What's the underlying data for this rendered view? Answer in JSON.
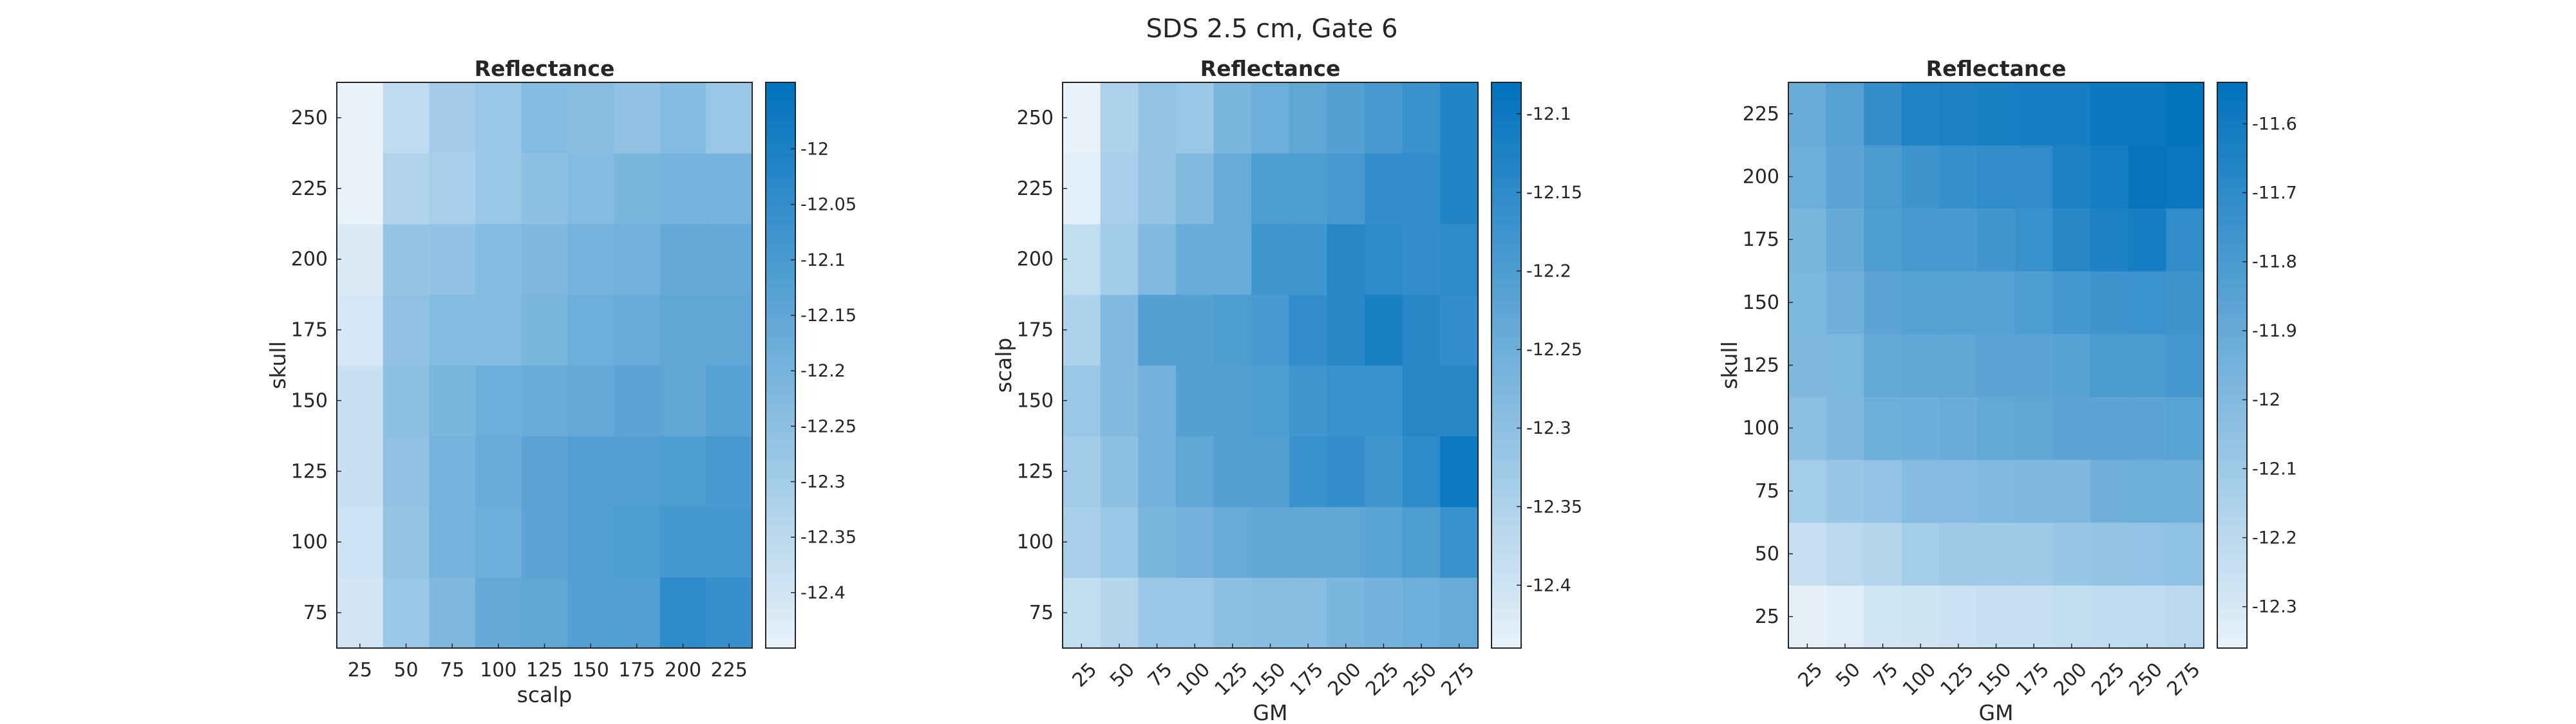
{
  "figure": {
    "title": "SDS 2.5 cm, Gate 6"
  },
  "colormap": {
    "low": "#e8f2fa",
    "high": "#0072bd",
    "frame": "#262626"
  },
  "chart_data": [
    {
      "type": "heatmap",
      "title": "Reflectance",
      "xlabel": "scalp",
      "ylabel": "skull",
      "x": [
        25,
        50,
        75,
        100,
        125,
        150,
        175,
        200,
        225
      ],
      "y": [
        75,
        100,
        125,
        150,
        175,
        200,
        225,
        250
      ],
      "x_tick_rotation": 0,
      "values": [
        [
          -12.4,
          -12.28,
          -12.22,
          -12.16,
          -12.15,
          -12.12,
          -12.12,
          -12.04,
          -12.06
        ],
        [
          -12.39,
          -12.27,
          -12.2,
          -12.18,
          -12.14,
          -12.12,
          -12.11,
          -12.09,
          -12.09
        ],
        [
          -12.38,
          -12.26,
          -12.2,
          -12.17,
          -12.14,
          -12.12,
          -12.12,
          -12.11,
          -12.1
        ],
        [
          -12.38,
          -12.25,
          -12.21,
          -12.18,
          -12.17,
          -12.16,
          -12.14,
          -12.15,
          -12.13
        ],
        [
          -12.41,
          -12.26,
          -12.23,
          -12.23,
          -12.21,
          -12.18,
          -12.17,
          -12.15,
          -12.15
        ],
        [
          -12.42,
          -12.27,
          -12.26,
          -12.23,
          -12.22,
          -12.2,
          -12.19,
          -12.16,
          -12.16
        ],
        [
          -12.45,
          -12.33,
          -12.31,
          -12.28,
          -12.25,
          -12.23,
          -12.21,
          -12.2,
          -12.2
        ],
        [
          -12.45,
          -12.36,
          -12.3,
          -12.28,
          -12.23,
          -12.24,
          -12.26,
          -12.23,
          -12.28
        ]
      ],
      "colorbar": {
        "min": -12.45,
        "max": -11.94,
        "ticks": [
          -12.4,
          -12.35,
          -12.3,
          -12.25,
          -12.2,
          -12.15,
          -12.1,
          -12.05,
          -12
        ]
      }
    },
    {
      "type": "heatmap",
      "title": "Reflectance",
      "xlabel": "GM",
      "ylabel": "scalp",
      "x": [
        25,
        50,
        75,
        100,
        125,
        150,
        175,
        200,
        225,
        250,
        275
      ],
      "y": [
        75,
        100,
        125,
        150,
        175,
        200,
        225,
        250
      ],
      "x_tick_rotation": -45,
      "values": [
        [
          -12.38,
          -12.36,
          -12.32,
          -12.32,
          -12.3,
          -12.29,
          -12.29,
          -12.27,
          -12.26,
          -12.25,
          -12.24
        ],
        [
          -12.34,
          -12.32,
          -12.27,
          -12.26,
          -12.24,
          -12.23,
          -12.23,
          -12.23,
          -12.22,
          -12.2,
          -12.17
        ],
        [
          -12.33,
          -12.3,
          -12.26,
          -12.23,
          -12.21,
          -12.21,
          -12.17,
          -12.16,
          -12.18,
          -12.15,
          -12.1
        ],
        [
          -12.32,
          -12.28,
          -12.26,
          -12.21,
          -12.21,
          -12.2,
          -12.18,
          -12.17,
          -12.17,
          -12.14,
          -12.14
        ],
        [
          -12.35,
          -12.28,
          -12.21,
          -12.21,
          -12.2,
          -12.19,
          -12.16,
          -12.14,
          -12.12,
          -12.14,
          -12.16
        ],
        [
          -12.38,
          -12.33,
          -12.28,
          -12.24,
          -12.24,
          -12.18,
          -12.18,
          -12.14,
          -12.15,
          -12.16,
          -12.15
        ],
        [
          -12.43,
          -12.34,
          -12.31,
          -12.28,
          -12.24,
          -12.2,
          -12.2,
          -12.19,
          -12.16,
          -12.16,
          -12.13
        ],
        [
          -12.44,
          -12.35,
          -12.31,
          -12.32,
          -12.27,
          -12.25,
          -12.23,
          -12.21,
          -12.19,
          -12.17,
          -12.13
        ]
      ],
      "colorbar": {
        "min": -12.44,
        "max": -12.08,
        "ticks": [
          -12.4,
          -12.35,
          -12.3,
          -12.25,
          -12.2,
          -12.15,
          -12.1
        ]
      }
    },
    {
      "type": "heatmap",
      "title": "Reflectance",
      "xlabel": "GM",
      "ylabel": "skull",
      "x": [
        25,
        50,
        75,
        100,
        125,
        150,
        175,
        200,
        225,
        250,
        275
      ],
      "y": [
        25,
        50,
        75,
        100,
        125,
        150,
        175,
        200,
        225
      ],
      "x_tick_rotation": -45,
      "values": [
        [
          -12.35,
          -12.33,
          -12.28,
          -12.27,
          -12.26,
          -12.24,
          -12.24,
          -12.23,
          -12.22,
          -12.21,
          -12.2
        ],
        [
          -12.24,
          -12.2,
          -12.18,
          -12.12,
          -12.1,
          -12.1,
          -12.1,
          -12.08,
          -12.07,
          -12.06,
          -12.05
        ],
        [
          -12.12,
          -12.08,
          -12.06,
          -12.01,
          -12.01,
          -12.0,
          -11.99,
          -11.99,
          -11.94,
          -11.93,
          -11.93
        ],
        [
          -12.03,
          -11.99,
          -11.93,
          -11.92,
          -11.91,
          -11.89,
          -11.88,
          -11.86,
          -11.86,
          -11.86,
          -11.85
        ],
        [
          -11.99,
          -11.98,
          -11.89,
          -11.88,
          -11.88,
          -11.86,
          -11.86,
          -11.84,
          -11.8,
          -11.8,
          -11.78
        ],
        [
          -11.98,
          -11.94,
          -11.86,
          -11.84,
          -11.84,
          -11.84,
          -11.82,
          -11.78,
          -11.76,
          -11.75,
          -11.76
        ],
        [
          -11.97,
          -11.9,
          -11.82,
          -11.79,
          -11.79,
          -11.77,
          -11.74,
          -11.68,
          -11.64,
          -11.62,
          -11.71
        ],
        [
          -11.93,
          -11.86,
          -11.8,
          -11.76,
          -11.73,
          -11.71,
          -11.71,
          -11.64,
          -11.61,
          -11.56,
          -11.57
        ],
        [
          -11.91,
          -11.84,
          -11.72,
          -11.65,
          -11.64,
          -11.63,
          -11.62,
          -11.62,
          -11.58,
          -11.58,
          -11.55
        ]
      ],
      "colorbar": {
        "min": -12.36,
        "max": -11.54,
        "ticks": [
          -12.3,
          -12.2,
          -12.1,
          -12,
          -11.9,
          -11.8,
          -11.7,
          -11.6
        ]
      }
    }
  ]
}
